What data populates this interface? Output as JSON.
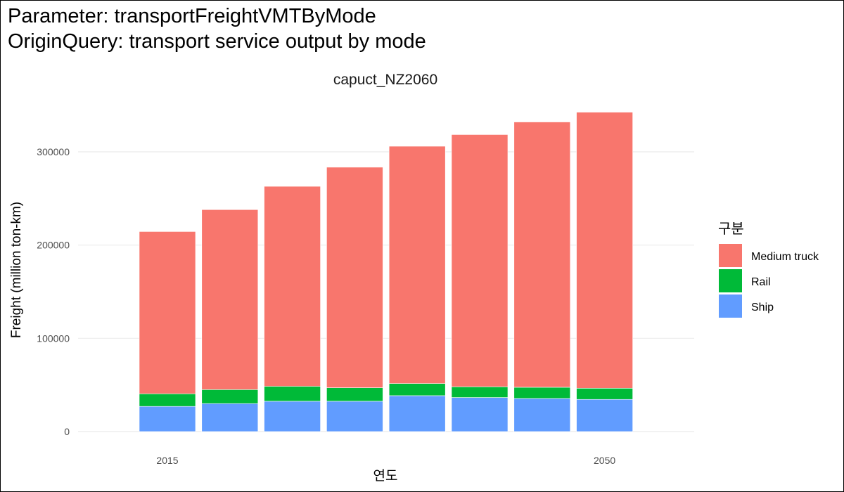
{
  "header": {
    "title_line1": "Parameter: transportFreightVMTByMode",
    "title_line2": "OriginQuery: transport service output by mode"
  },
  "chart_data": {
    "type": "bar",
    "stacked": true,
    "facet_label": "capuct_NZ2060",
    "xlabel": "연도",
    "ylabel": "Freight (million ton-km)",
    "x_tick_labels": [
      "2015",
      "2050"
    ],
    "categories": [
      "2015",
      "2020",
      "2025",
      "2030",
      "2035",
      "2040",
      "2045",
      "2050"
    ],
    "ylim": [
      0,
      340000
    ],
    "y_ticks": [
      0,
      100000,
      200000,
      300000
    ],
    "y_tick_labels": [
      "0",
      "100000",
      "200000",
      "300000"
    ],
    "grid": true,
    "legend": {
      "title": "구분",
      "position": "right"
    },
    "series": [
      {
        "name": "Ship",
        "color": "#619CFF",
        "values": [
          27000,
          30000,
          32500,
          32500,
          38500,
          36500,
          35500,
          34500
        ]
      },
      {
        "name": "Rail",
        "color": "#00BA38",
        "values": [
          13500,
          15000,
          16000,
          14500,
          13000,
          11500,
          12000,
          12000
        ]
      },
      {
        "name": "Medium truck",
        "color": "#F8766D",
        "values": [
          174000,
          193000,
          214500,
          236500,
          254500,
          270500,
          284500,
          296000
        ]
      }
    ],
    "legend_order": [
      "Medium truck",
      "Rail",
      "Ship"
    ]
  }
}
